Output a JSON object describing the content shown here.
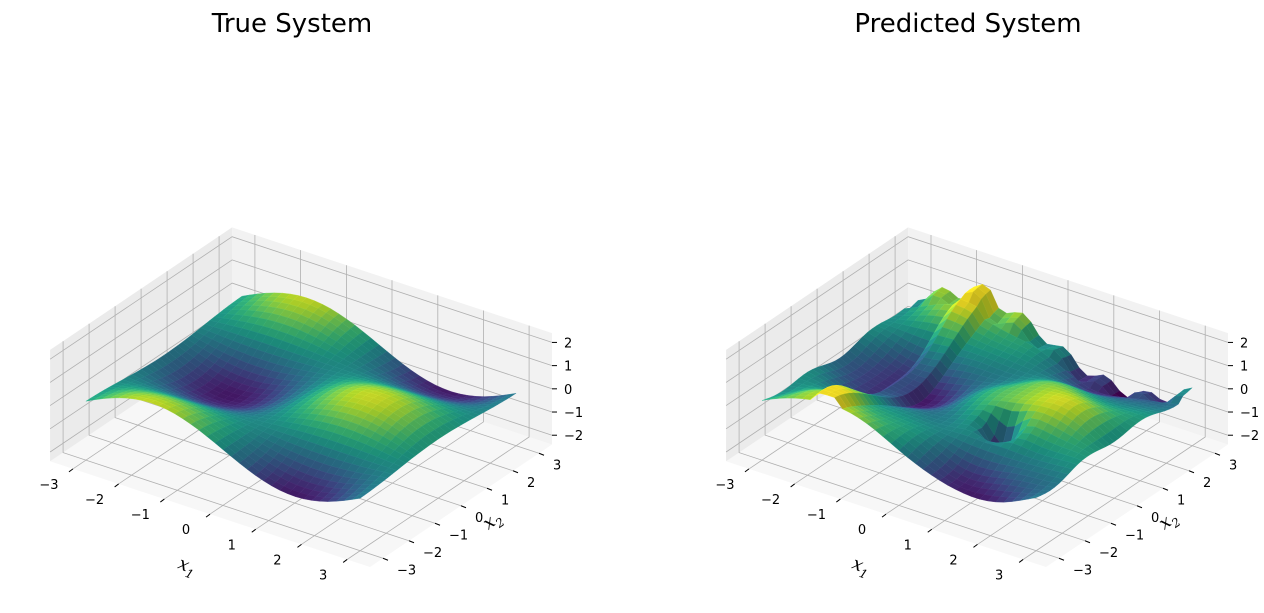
{
  "chart_data": [
    {
      "type": "surface",
      "title": "True System",
      "xlabel": "x",
      "xlabel_sub": "1",
      "ylabel": "x",
      "ylabel_sub": "2",
      "zlabel": "",
      "xlim": [
        -3.5,
        3.5
      ],
      "ylim": [
        -3.5,
        3.5
      ],
      "zlim": [
        -2.4,
        2.4
      ],
      "x_ticks": [
        -3,
        -2,
        -1,
        0,
        1,
        2,
        3
      ],
      "y_ticks": [
        -3,
        -2,
        -1,
        0,
        1,
        2,
        3
      ],
      "z_ticks": [
        -2,
        -1,
        0,
        1,
        2
      ],
      "x_tick_labels": [
        "−3",
        "−2",
        "−1",
        "0",
        "1",
        "2",
        "3"
      ],
      "y_tick_labels": [
        "−3",
        "−2",
        "−1",
        "0",
        "1",
        "2",
        "3"
      ],
      "z_tick_labels": [
        "−2",
        "−1",
        "0",
        "1",
        "2"
      ],
      "colormap": "viridis",
      "grid": true,
      "surface": "sin(x1)*cos(x2)-like smooth surface over [-3,3]x[-3,3], values roughly -1.2 to 1.2"
    },
    {
      "type": "surface",
      "title": "Predicted System",
      "xlabel": "x",
      "xlabel_sub": "1",
      "ylabel": "x",
      "ylabel_sub": "2",
      "zlabel": "",
      "xlim": [
        -3.5,
        3.5
      ],
      "ylim": [
        -3.5,
        3.5
      ],
      "zlim": [
        -2.4,
        2.4
      ],
      "x_ticks": [
        -3,
        -2,
        -1,
        0,
        1,
        2,
        3
      ],
      "y_ticks": [
        -3,
        -2,
        -1,
        0,
        1,
        2,
        3
      ],
      "z_ticks": [
        -2,
        -1,
        0,
        1,
        2
      ],
      "x_tick_labels": [
        "−3",
        "−2",
        "−1",
        "0",
        "1",
        "2",
        "3"
      ],
      "y_tick_labels": [
        "−3",
        "−2",
        "−1",
        "0",
        "1",
        "2",
        "3"
      ],
      "z_tick_labels": [
        "−2",
        "−1",
        "0",
        "1",
        "2"
      ],
      "colormap": "viridis",
      "grid": true,
      "surface": "noisy approximation of the true surface with a sharp downward spike near x1=1, x2=-1"
    }
  ]
}
